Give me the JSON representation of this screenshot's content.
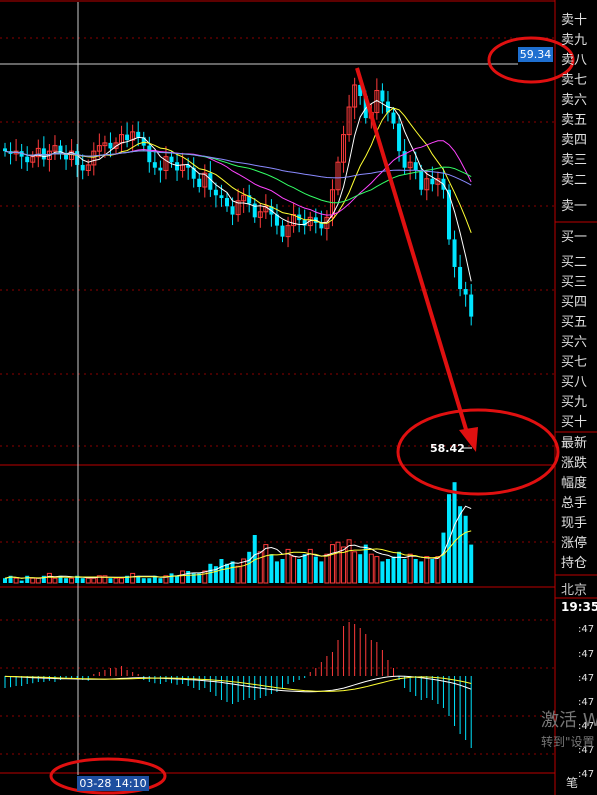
{
  "side_panel": {
    "sell_labels": [
      "卖十",
      "卖九",
      "卖八",
      "卖七",
      "卖六",
      "卖五",
      "卖四",
      "卖三",
      "卖二",
      "卖一"
    ],
    "buy_labels": [
      "买一",
      "买二",
      "买三",
      "买四",
      "买五",
      "买六",
      "买七",
      "买八",
      "买九",
      "买十"
    ],
    "quote_labels": [
      "最新",
      "涨跌",
      "幅度",
      "总手",
      "现手",
      "涨停",
      "持仓"
    ],
    "city": "北京",
    "clock": "19:35",
    "price_rows": [
      ":47",
      ":47",
      ":47",
      ":47",
      ":47",
      ":47",
      ":47"
    ],
    "bottom_char": "笔"
  },
  "overlay": {
    "high_price_tag": "59.34",
    "low_price_label": "58.42",
    "crosshair_time": "03-28 14:10",
    "watermark_line1": "激活 W",
    "watermark_line2": "转到\"设置"
  },
  "colors": {
    "up": "#ff3b3b",
    "down": "#00e5ff",
    "grid": "#8b0000",
    "annotation": "#e01010",
    "ma5": "#ffffff",
    "ma10": "#ffff33",
    "ma20": "#ff44ff",
    "ma30": "#33ff66",
    "ma60": "#8a8aff"
  },
  "chart_data": [
    {
      "type": "candlestick",
      "title": "",
      "price_range": [
        57.9,
        59.55
      ],
      "highlighted_high": 59.34,
      "highlighted_low": 58.42,
      "closes": [
        59.02,
        59.01,
        59.02,
        59.0,
        58.98,
        59.0,
        59.03,
        58.99,
        59.02,
        59.04,
        59.01,
        58.99,
        59.02,
        58.97,
        58.95,
        58.97,
        59.02,
        59.04,
        59.05,
        59.03,
        59.05,
        59.08,
        59.06,
        59.09,
        59.07,
        59.04,
        58.98,
        58.96,
        58.95,
        59.0,
        58.98,
        58.95,
        58.97,
        58.96,
        58.92,
        58.89,
        58.94,
        58.88,
        58.86,
        58.85,
        58.82,
        58.79,
        58.84,
        58.86,
        58.83,
        58.78,
        58.8,
        58.82,
        58.79,
        58.75,
        58.71,
        58.75,
        58.79,
        58.77,
        58.75,
        58.78,
        58.76,
        58.74,
        58.78,
        58.88,
        58.98,
        59.08,
        59.18,
        59.26,
        59.22,
        59.14,
        59.16,
        59.24,
        59.2,
        59.16,
        59.12,
        59.02,
        58.96,
        58.98,
        58.95,
        58.88,
        58.92,
        58.9,
        58.92,
        58.88,
        58.7,
        58.6,
        58.52,
        58.5,
        58.42
      ],
      "series": [
        {
          "name": "",
          "role": "ma5"
        },
        {
          "name": "",
          "role": "ma10"
        },
        {
          "name": "",
          "role": "ma20"
        },
        {
          "name": "",
          "role": "ma30"
        },
        {
          "name": "",
          "role": "ma60"
        }
      ],
      "annotation": "red arrow from the high to the low, red ellipses around the high price tag, the low label and the time tag"
    },
    {
      "type": "bar",
      "title": "",
      "volume": [
        2,
        3,
        2,
        1,
        3,
        2,
        2,
        3,
        4,
        2,
        3,
        2,
        2,
        3,
        2,
        2,
        2,
        3,
        3,
        2,
        2,
        2,
        3,
        4,
        3,
        2,
        2,
        3,
        2,
        3,
        4,
        3,
        5,
        5,
        4,
        4,
        5,
        8,
        7,
        10,
        8,
        9,
        7,
        10,
        13,
        20,
        13,
        16,
        12,
        9,
        10,
        14,
        11,
        10,
        12,
        14,
        11,
        9,
        12,
        16,
        17,
        15,
        18,
        13,
        12,
        16,
        12,
        11,
        9,
        10,
        11,
        13,
        10,
        12,
        10,
        9,
        11,
        10,
        11,
        21,
        37,
        42,
        32,
        28,
        16
      ]
    },
    {
      "type": "bar",
      "title": "",
      "macd_hist": [
        -0.3,
        -0.28,
        -0.25,
        -0.25,
        -0.2,
        -0.18,
        -0.15,
        -0.15,
        -0.12,
        -0.15,
        -0.1,
        -0.05,
        -0.05,
        -0.08,
        -0.1,
        -0.12,
        0.05,
        0.1,
        0.15,
        0.2,
        0.2,
        0.25,
        0.15,
        0.1,
        0.05,
        -0.1,
        -0.15,
        -0.18,
        -0.2,
        -0.15,
        -0.18,
        -0.22,
        -0.2,
        -0.25,
        -0.3,
        -0.35,
        -0.3,
        -0.4,
        -0.5,
        -0.6,
        -0.65,
        -0.7,
        -0.65,
        -0.6,
        -0.55,
        -0.6,
        -0.55,
        -0.5,
        -0.45,
        -0.4,
        -0.3,
        -0.2,
        -0.15,
        -0.1,
        -0.05,
        0.1,
        0.2,
        0.35,
        0.5,
        0.6,
        0.9,
        1.25,
        1.35,
        1.3,
        1.2,
        1.05,
        0.9,
        0.85,
        0.65,
        0.4,
        0.2,
        -0.1,
        -0.3,
        -0.4,
        -0.5,
        -0.6,
        -0.55,
        -0.6,
        -0.7,
        -0.8,
        -1.0,
        -1.25,
        -1.45,
        -1.6,
        -1.8
      ]
    }
  ]
}
